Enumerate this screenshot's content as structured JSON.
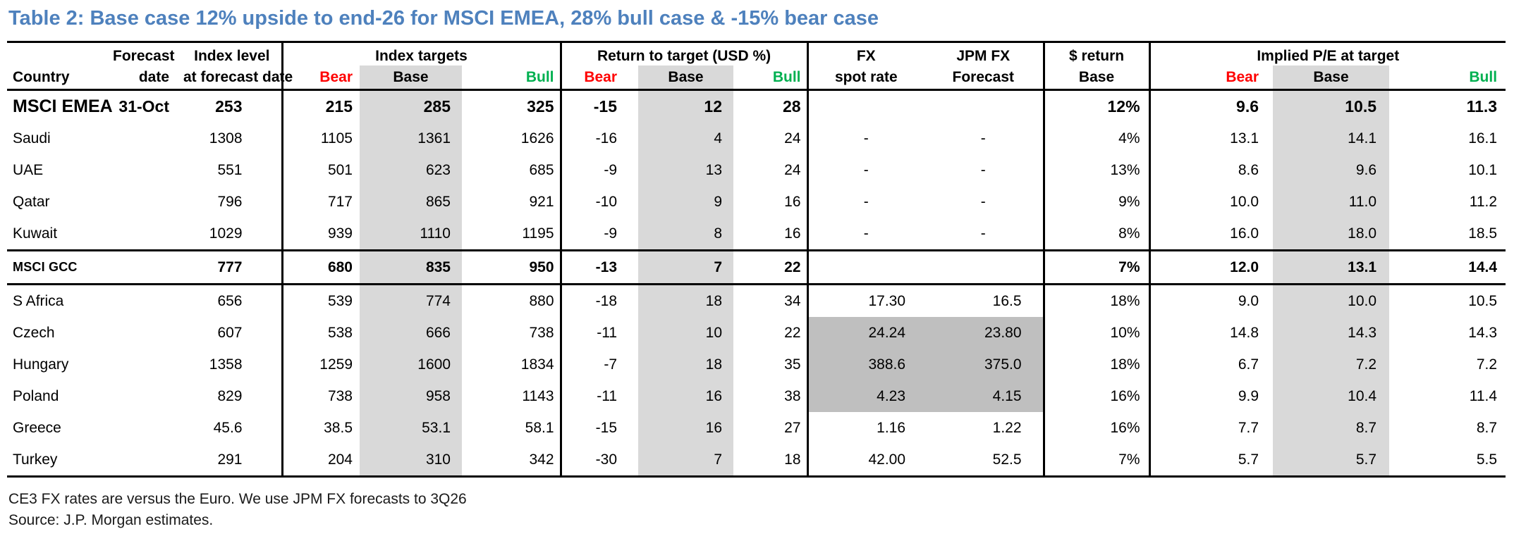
{
  "title": "Table 2: Base case 12% upside to end-26 for MSCI EMEA, 28% bull case & -15% bear case",
  "colors": {
    "title_blue": "#4e81bd",
    "bear_red": "#ff0000",
    "bull_green": "#00b050",
    "shade_light": "#d9d9d9",
    "shade_dark": "#bfbfbf"
  },
  "header": {
    "country": "Country",
    "forecast_line1": "Forecast",
    "forecast_line2": "date",
    "index_level_line1": "Index level",
    "index_level_line2": "at forecast date",
    "index_targets": "Index targets",
    "return_to_target": "Return to target (USD %)",
    "fx_line1": "FX",
    "fx_line2": "spot rate",
    "jpmfx_line1": "JPM FX",
    "jpmfx_line2": "Forecast",
    "usd_return_line1": "$ return",
    "usd_return_line2": "Base",
    "implied_pe": "Implied P/E at target",
    "bear": "Bear",
    "base": "Base",
    "bull": "Bull"
  },
  "rows": [
    {
      "style": "emea",
      "country": "MSCI EMEA",
      "date": "31-Oct",
      "level": "253",
      "it_bear": "215",
      "it_base": "285",
      "it_bull": "325",
      "rt_bear": "-15",
      "rt_base": "12",
      "rt_bull": "28",
      "fx_spot": "",
      "fx_fcst": "",
      "usd_return": "12%",
      "pe_bear": "9.6",
      "pe_base": "10.5",
      "pe_bull": "11.3",
      "fx_dark": false
    },
    {
      "style": "",
      "country": "Saudi",
      "date": "",
      "level": "1308",
      "it_bear": "1105",
      "it_base": "1361",
      "it_bull": "1626",
      "rt_bear": "-16",
      "rt_base": "4",
      "rt_bull": "24",
      "fx_spot": "-",
      "fx_fcst": "-",
      "usd_return": "4%",
      "pe_bear": "13.1",
      "pe_base": "14.1",
      "pe_bull": "16.1",
      "fx_dark": false
    },
    {
      "style": "",
      "country": "UAE",
      "date": "",
      "level": "551",
      "it_bear": "501",
      "it_base": "623",
      "it_bull": "685",
      "rt_bear": "-9",
      "rt_base": "13",
      "rt_bull": "24",
      "fx_spot": "-",
      "fx_fcst": "-",
      "usd_return": "13%",
      "pe_bear": "8.6",
      "pe_base": "9.6",
      "pe_bull": "10.1",
      "fx_dark": false
    },
    {
      "style": "",
      "country": "Qatar",
      "date": "",
      "level": "796",
      "it_bear": "717",
      "it_base": "865",
      "it_bull": "921",
      "rt_bear": "-10",
      "rt_base": "9",
      "rt_bull": "16",
      "fx_spot": "-",
      "fx_fcst": "-",
      "usd_return": "9%",
      "pe_bear": "10.0",
      "pe_base": "11.0",
      "pe_bull": "11.2",
      "fx_dark": false
    },
    {
      "style": "",
      "country": "Kuwait",
      "date": "",
      "level": "1029",
      "it_bear": "939",
      "it_base": "1110",
      "it_bull": "1195",
      "rt_bear": "-9",
      "rt_base": "8",
      "rt_bull": "16",
      "fx_spot": "-",
      "fx_fcst": "-",
      "usd_return": "8%",
      "pe_bear": "16.0",
      "pe_base": "18.0",
      "pe_bull": "18.5",
      "fx_dark": false
    },
    {
      "style": "gcc",
      "country": "MSCI GCC",
      "date": "",
      "level": "777",
      "it_bear": "680",
      "it_base": "835",
      "it_bull": "950",
      "rt_bear": "-13",
      "rt_base": "7",
      "rt_bull": "22",
      "fx_spot": "",
      "fx_fcst": "",
      "usd_return": "7%",
      "pe_bear": "12.0",
      "pe_base": "13.1",
      "pe_bull": "14.4",
      "fx_dark": false
    },
    {
      "style": "",
      "country": "S Africa",
      "date": "",
      "level": "656",
      "it_bear": "539",
      "it_base": "774",
      "it_bull": "880",
      "rt_bear": "-18",
      "rt_base": "18",
      "rt_bull": "34",
      "fx_spot": "17.30",
      "fx_fcst": "16.5",
      "usd_return": "18%",
      "pe_bear": "9.0",
      "pe_base": "10.0",
      "pe_bull": "10.5",
      "fx_dark": false
    },
    {
      "style": "",
      "country": "Czech",
      "date": "",
      "level": "607",
      "it_bear": "538",
      "it_base": "666",
      "it_bull": "738",
      "rt_bear": "-11",
      "rt_base": "10",
      "rt_bull": "22",
      "fx_spot": "24.24",
      "fx_fcst": "23.80",
      "usd_return": "10%",
      "pe_bear": "14.8",
      "pe_base": "14.3",
      "pe_bull": "14.3",
      "fx_dark": true
    },
    {
      "style": "",
      "country": "Hungary",
      "date": "",
      "level": "1358",
      "it_bear": "1259",
      "it_base": "1600",
      "it_bull": "1834",
      "rt_bear": "-7",
      "rt_base": "18",
      "rt_bull": "35",
      "fx_spot": "388.6",
      "fx_fcst": "375.0",
      "usd_return": "18%",
      "pe_bear": "6.7",
      "pe_base": "7.2",
      "pe_bull": "7.2",
      "fx_dark": true
    },
    {
      "style": "",
      "country": "Poland",
      "date": "",
      "level": "829",
      "it_bear": "738",
      "it_base": "958",
      "it_bull": "1143",
      "rt_bear": "-11",
      "rt_base": "16",
      "rt_bull": "38",
      "fx_spot": "4.23",
      "fx_fcst": "4.15",
      "usd_return": "16%",
      "pe_bear": "9.9",
      "pe_base": "10.4",
      "pe_bull": "11.4",
      "fx_dark": true
    },
    {
      "style": "",
      "country": "Greece",
      "date": "",
      "level": "45.6",
      "it_bear": "38.5",
      "it_base": "53.1",
      "it_bull": "58.1",
      "rt_bear": "-15",
      "rt_base": "16",
      "rt_bull": "27",
      "fx_spot": "1.16",
      "fx_fcst": "1.22",
      "usd_return": "16%",
      "pe_bear": "7.7",
      "pe_base": "8.7",
      "pe_bull": "8.7",
      "fx_dark": false
    },
    {
      "style": "",
      "country": "Turkey",
      "date": "",
      "level": "291",
      "it_bear": "204",
      "it_base": "310",
      "it_bull": "342",
      "rt_bear": "-30",
      "rt_base": "7",
      "rt_bull": "18",
      "fx_spot": "42.00",
      "fx_fcst": "52.5",
      "usd_return": "7%",
      "pe_bear": "5.7",
      "pe_base": "5.7",
      "pe_bull": "5.5",
      "fx_dark": false
    }
  ],
  "footnotes": [
    "CE3 FX rates are versus the Euro. We use JPM FX forecasts to 3Q26",
    "Source: J.P. Morgan estimates."
  ]
}
